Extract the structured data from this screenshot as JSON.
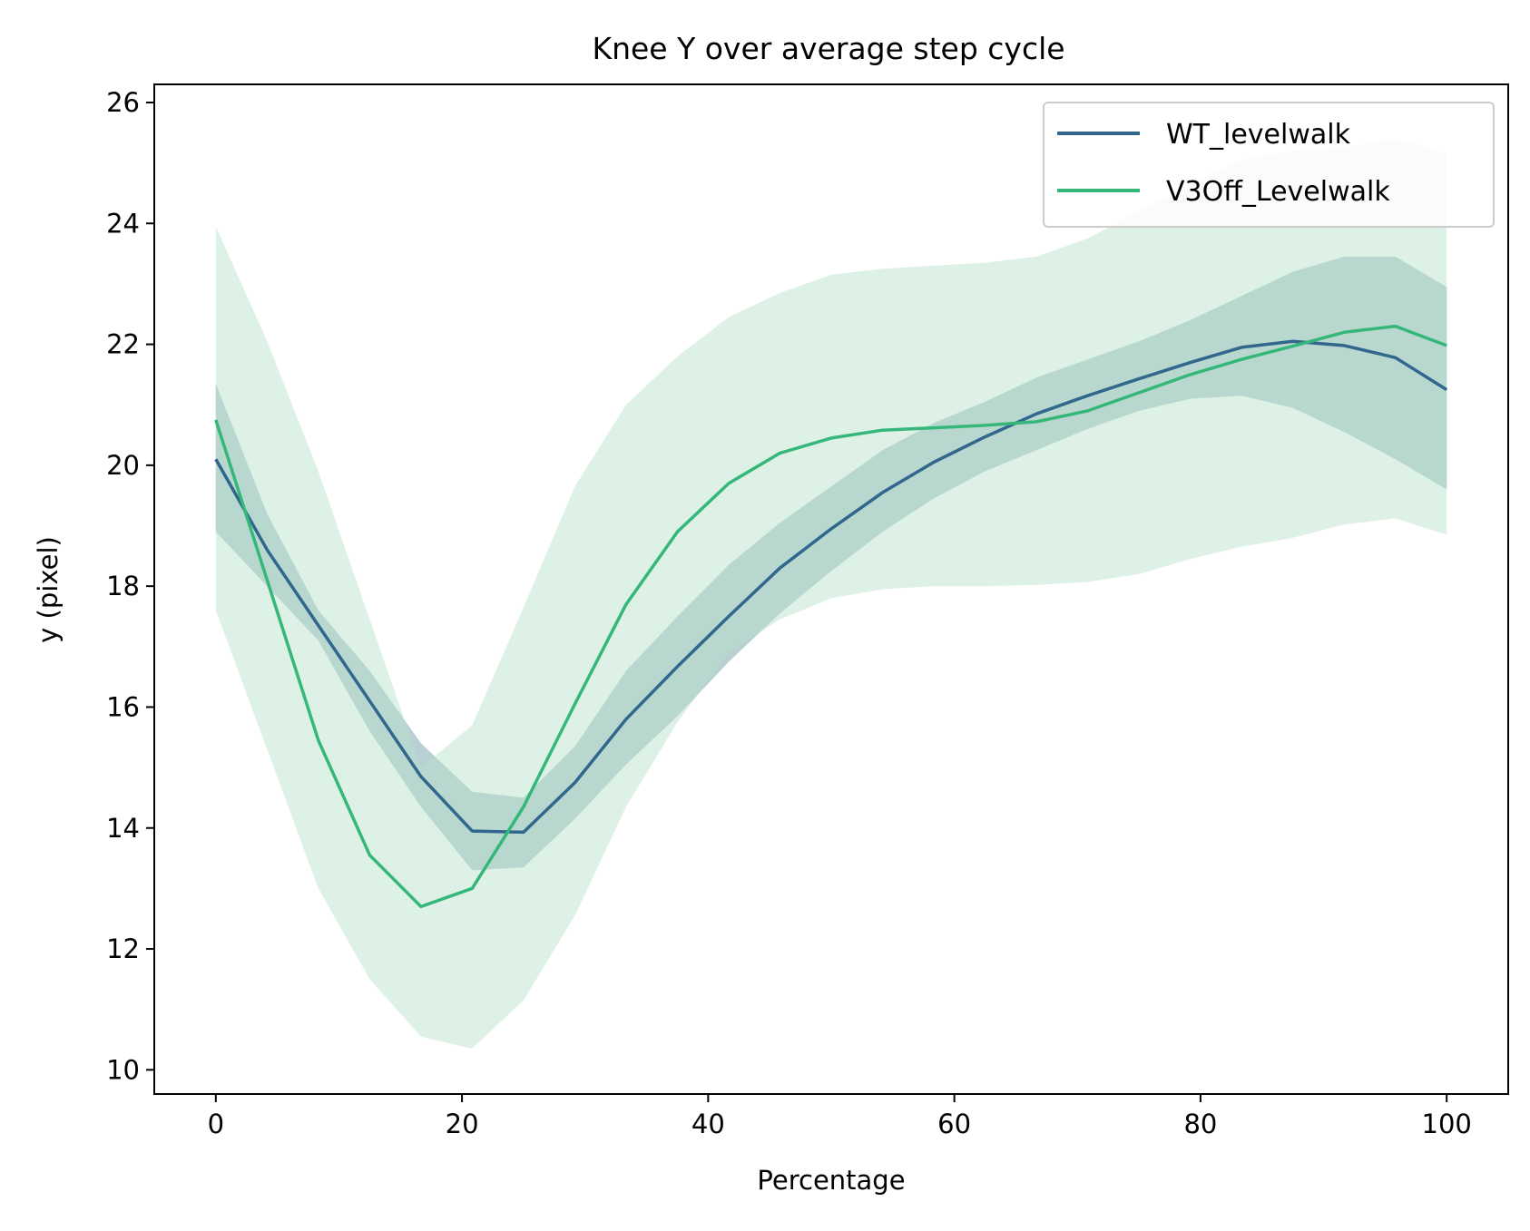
{
  "chart_data": {
    "type": "line",
    "title": "Knee Y over average step cycle",
    "xlabel": "Percentage",
    "ylabel": "y (pixel)",
    "xlim": [
      -5,
      105
    ],
    "ylim": [
      9.6,
      26.3
    ],
    "xticks": [
      0,
      20,
      40,
      60,
      80,
      100
    ],
    "yticks": [
      10,
      12,
      14,
      16,
      18,
      20,
      22,
      24,
      26
    ],
    "grid": false,
    "legend": "top-right",
    "x": [
      0,
      4.17,
      8.33,
      12.5,
      16.67,
      20.83,
      25,
      29.17,
      33.33,
      37.5,
      41.67,
      45.83,
      50,
      54.17,
      58.33,
      62.5,
      66.67,
      70.83,
      75,
      79.17,
      83.33,
      87.5,
      91.67,
      95.83,
      100
    ],
    "series": [
      {
        "name": "WT_levelwalk",
        "color": "#31668d",
        "band_color": "#c9d6e3",
        "values": [
          20.1,
          18.6,
          17.35,
          16.1,
          14.85,
          13.95,
          13.93,
          14.75,
          15.8,
          16.67,
          17.5,
          18.3,
          18.95,
          19.55,
          20.05,
          20.47,
          20.85,
          21.15,
          21.43,
          21.7,
          21.95,
          22.05,
          21.98,
          21.78,
          21.25
        ],
        "band_upper": [
          21.35,
          19.2,
          17.6,
          16.6,
          15.4,
          14.6,
          14.5,
          15.35,
          16.6,
          17.5,
          18.35,
          19.05,
          19.65,
          20.25,
          20.7,
          21.05,
          21.45,
          21.75,
          22.05,
          22.4,
          22.8,
          23.2,
          23.45,
          23.45,
          22.95
        ],
        "band_lower": [
          18.9,
          18.0,
          17.1,
          15.6,
          14.35,
          13.3,
          13.35,
          14.15,
          15.05,
          15.85,
          16.75,
          17.55,
          18.25,
          18.9,
          19.45,
          19.9,
          20.25,
          20.6,
          20.9,
          21.1,
          21.15,
          20.95,
          20.55,
          20.1,
          19.6
        ]
      },
      {
        "name": "V3Off_Levelwalk",
        "color": "#35b779",
        "band_color": "#d8efe2",
        "values": [
          20.75,
          18.1,
          15.45,
          13.55,
          12.7,
          13.0,
          14.35,
          16.05,
          17.7,
          18.9,
          19.7,
          20.2,
          20.45,
          20.58,
          20.62,
          20.66,
          20.72,
          20.9,
          21.2,
          21.5,
          21.75,
          21.97,
          22.2,
          22.3,
          21.98
        ],
        "band_upper": [
          23.95,
          22.05,
          19.9,
          17.45,
          15.0,
          15.7,
          17.65,
          19.65,
          21.0,
          21.8,
          22.45,
          22.85,
          23.15,
          23.25,
          23.3,
          23.35,
          23.45,
          23.75,
          24.2,
          24.65,
          25.05,
          25.2,
          25.25,
          25.4,
          25.15
        ],
        "band_lower": [
          17.6,
          15.3,
          13.0,
          11.5,
          10.55,
          10.35,
          11.15,
          12.55,
          14.35,
          15.75,
          16.9,
          17.45,
          17.8,
          17.95,
          18.0,
          18.0,
          18.02,
          18.07,
          18.2,
          18.45,
          18.65,
          18.8,
          19.02,
          19.12,
          18.85
        ]
      }
    ]
  }
}
